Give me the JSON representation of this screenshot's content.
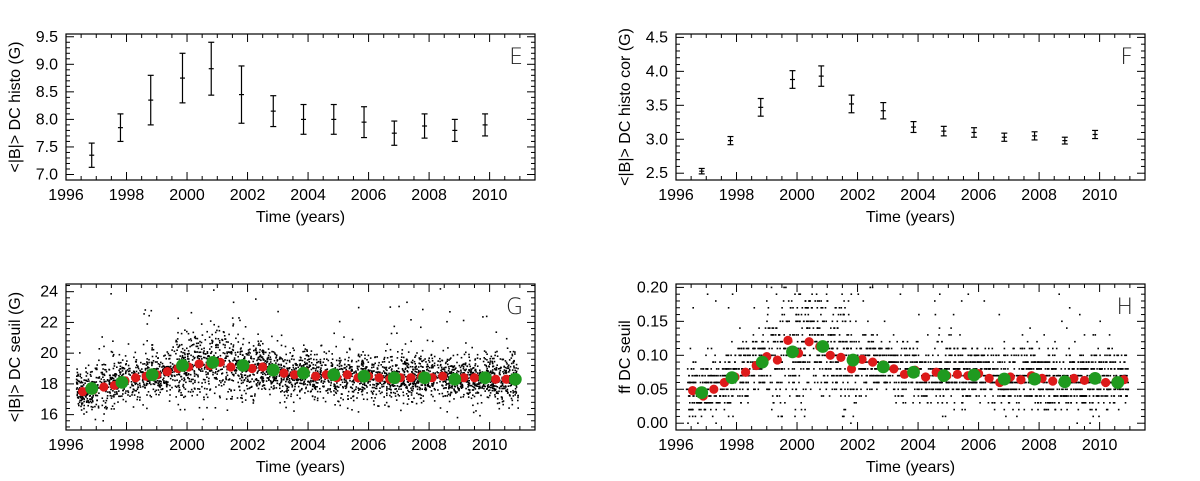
{
  "chart_data": [
    {
      "id": "E",
      "type": "errorbar",
      "panel_label": "E",
      "xlabel": "Time (years)",
      "ylabel": "<|B|> DC histo (G)",
      "xlim": [
        1996,
        2011.5
      ],
      "ylim": [
        6.9,
        9.55
      ],
      "xticks": [
        1996,
        1998,
        2000,
        2002,
        2004,
        2006,
        2008,
        2010
      ],
      "yticks": [
        7.0,
        7.5,
        8.0,
        8.5,
        9.0,
        9.5
      ],
      "ytick_labels": [
        "7.0",
        "7.5",
        "8.0",
        "8.5",
        "9.0",
        "9.5"
      ],
      "x": [
        1996.85,
        1997.8,
        1998.8,
        1999.85,
        2000.8,
        2001.8,
        2002.85,
        2003.85,
        2004.85,
        2005.85,
        2006.85,
        2007.85,
        2008.85,
        2009.85
      ],
      "y": [
        7.35,
        7.85,
        8.35,
        8.75,
        8.92,
        8.45,
        8.15,
        8.0,
        8.0,
        7.95,
        7.75,
        7.88,
        7.8,
        7.9
      ],
      "err": [
        0.22,
        0.25,
        0.45,
        0.45,
        0.48,
        0.52,
        0.28,
        0.27,
        0.27,
        0.28,
        0.22,
        0.22,
        0.2,
        0.2
      ]
    },
    {
      "id": "F",
      "type": "errorbar",
      "panel_label": "F",
      "xlabel": "Time (years)",
      "ylabel": "<|B|> DC histo cor (G)",
      "xlim": [
        1996,
        2011.5
      ],
      "ylim": [
        2.4,
        4.55
      ],
      "xticks": [
        1996,
        1998,
        2000,
        2002,
        2004,
        2006,
        2008,
        2010
      ],
      "yticks": [
        2.5,
        3.0,
        3.5,
        4.0,
        4.5
      ],
      "ytick_labels": [
        "2.5",
        "3.0",
        "3.5",
        "4.0",
        "4.5"
      ],
      "x": [
        1996.85,
        1997.8,
        1998.8,
        1999.85,
        2000.8,
        2001.8,
        2002.85,
        2003.85,
        2004.85,
        2005.85,
        2006.85,
        2007.85,
        2008.85,
        2009.85
      ],
      "y": [
        2.53,
        2.98,
        3.47,
        3.88,
        3.93,
        3.52,
        3.42,
        3.18,
        3.12,
        3.1,
        3.03,
        3.05,
        2.98,
        3.07
      ],
      "err": [
        0.04,
        0.06,
        0.13,
        0.13,
        0.15,
        0.13,
        0.12,
        0.08,
        0.07,
        0.07,
        0.06,
        0.06,
        0.05,
        0.06
      ]
    },
    {
      "id": "G",
      "type": "scatter",
      "panel_label": "G",
      "xlabel": "Time (years)",
      "ylabel": "<|B|> DC seuil (G)",
      "xlim": [
        1996,
        2011.5
      ],
      "ylim": [
        15,
        24.5
      ],
      "xticks": [
        1996,
        1998,
        2000,
        2002,
        2004,
        2006,
        2008,
        2010
      ],
      "yticks": [
        16,
        18,
        20,
        22,
        24
      ],
      "ytick_labels": [
        "16",
        "18",
        "20",
        "22",
        "24"
      ],
      "dense_points": "daily values, approx. 16.5-21 G with outliers up to 24 G",
      "red_x": [
        1996.55,
        1996.9,
        1997.25,
        1997.6,
        1997.95,
        1998.3,
        1998.65,
        1999.0,
        1999.35,
        1999.7,
        2000.05,
        2000.4,
        2000.75,
        2001.1,
        2001.45,
        2001.8,
        2002.15,
        2002.5,
        2002.85,
        2003.2,
        2003.55,
        2003.9,
        2004.25,
        2004.6,
        2004.95,
        2005.3,
        2005.65,
        2006.0,
        2006.35,
        2006.7,
        2007.05,
        2007.4,
        2007.75,
        2008.1,
        2008.45,
        2008.8,
        2009.15,
        2009.5,
        2009.85,
        2010.2,
        2010.55,
        2010.8
      ],
      "red_y": [
        17.5,
        17.6,
        17.8,
        17.9,
        18.2,
        18.4,
        18.5,
        18.6,
        18.8,
        19.0,
        19.1,
        19.3,
        19.2,
        19.4,
        19.1,
        19.2,
        19.0,
        19.1,
        18.8,
        18.7,
        18.6,
        18.8,
        18.5,
        18.6,
        18.4,
        18.6,
        18.4,
        18.5,
        18.4,
        18.3,
        18.4,
        18.4,
        18.5,
        18.4,
        18.5,
        18.3,
        18.4,
        18.4,
        18.5,
        18.3,
        18.3,
        18.3
      ],
      "green_x": [
        1996.85,
        1997.85,
        1998.85,
        1999.85,
        2000.85,
        2001.85,
        2002.85,
        2003.85,
        2004.85,
        2005.85,
        2006.85,
        2007.85,
        2008.85,
        2009.85,
        2010.85
      ],
      "green_y": [
        17.7,
        18.1,
        18.6,
        19.2,
        19.4,
        19.2,
        18.9,
        18.7,
        18.6,
        18.5,
        18.4,
        18.4,
        18.3,
        18.4,
        18.3
      ]
    },
    {
      "id": "H",
      "type": "scatter",
      "panel_label": "H",
      "xlabel": "Time (years)",
      "ylabel": "ff DC seuil",
      "xlim": [
        1996,
        2011.5
      ],
      "ylim": [
        -0.01,
        0.205
      ],
      "xticks": [
        1996,
        1998,
        2000,
        2002,
        2004,
        2006,
        2008,
        2010
      ],
      "yticks": [
        0.0,
        0.05,
        0.1,
        0.15,
        0.2
      ],
      "ytick_labels": [
        "0.00",
        "0.05",
        "0.10",
        "0.15",
        "0.20"
      ],
      "dense_points": "daily values quantized in steps of about 0.01, range 0.0-0.2",
      "red_x": [
        1996.55,
        1996.9,
        1997.25,
        1997.6,
        1997.95,
        1998.3,
        1998.65,
        1999.0,
        1999.35,
        1999.7,
        2000.05,
        2000.4,
        2000.75,
        2001.1,
        2001.45,
        2001.8,
        2002.15,
        2002.5,
        2002.85,
        2003.2,
        2003.55,
        2003.9,
        2004.25,
        2004.6,
        2004.95,
        2005.3,
        2005.65,
        2006.0,
        2006.35,
        2006.7,
        2007.05,
        2007.4,
        2007.75,
        2008.1,
        2008.45,
        2008.8,
        2009.15,
        2009.5,
        2009.85,
        2010.2,
        2010.55,
        2010.8
      ],
      "red_y": [
        0.048,
        0.04,
        0.05,
        0.06,
        0.068,
        0.075,
        0.085,
        0.098,
        0.093,
        0.122,
        0.103,
        0.12,
        0.113,
        0.1,
        0.097,
        0.08,
        0.094,
        0.09,
        0.086,
        0.08,
        0.072,
        0.078,
        0.068,
        0.075,
        0.07,
        0.072,
        0.07,
        0.073,
        0.066,
        0.06,
        0.068,
        0.064,
        0.07,
        0.066,
        0.062,
        0.06,
        0.066,
        0.063,
        0.068,
        0.06,
        0.062,
        0.064
      ],
      "green_x": [
        1996.85,
        1997.85,
        1998.85,
        1999.85,
        2000.85,
        2001.85,
        2002.85,
        2003.85,
        2004.85,
        2005.85,
        2006.85,
        2007.85,
        2008.85,
        2009.85,
        2010.6
      ],
      "green_y": [
        0.045,
        0.067,
        0.09,
        0.105,
        0.113,
        0.093,
        0.083,
        0.075,
        0.07,
        0.071,
        0.065,
        0.065,
        0.061,
        0.066,
        0.06
      ]
    }
  ],
  "colors": {
    "red": "#dd1a1a",
    "green": "#1f9a1f",
    "ink": "#000000"
  }
}
